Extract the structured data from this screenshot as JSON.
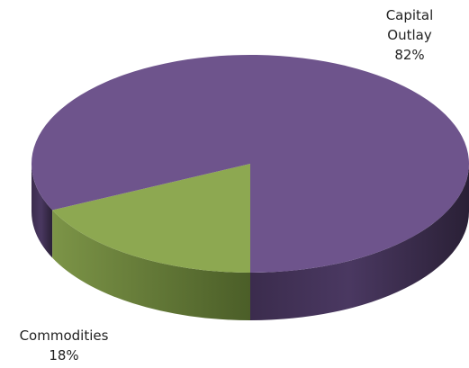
{
  "chart_data": {
    "type": "pie",
    "style": "3d",
    "slices": [
      {
        "label": "Capital Outlay",
        "label_lines": [
          "Capital",
          "Outlay"
        ],
        "value": 82,
        "display": "82%",
        "color": "#6E548C"
      },
      {
        "label": "Commodities",
        "label_lines": [
          "Commodities"
        ],
        "value": 18,
        "display": "18%",
        "color": "#8DA851"
      }
    ],
    "title": "",
    "legend": "none"
  }
}
